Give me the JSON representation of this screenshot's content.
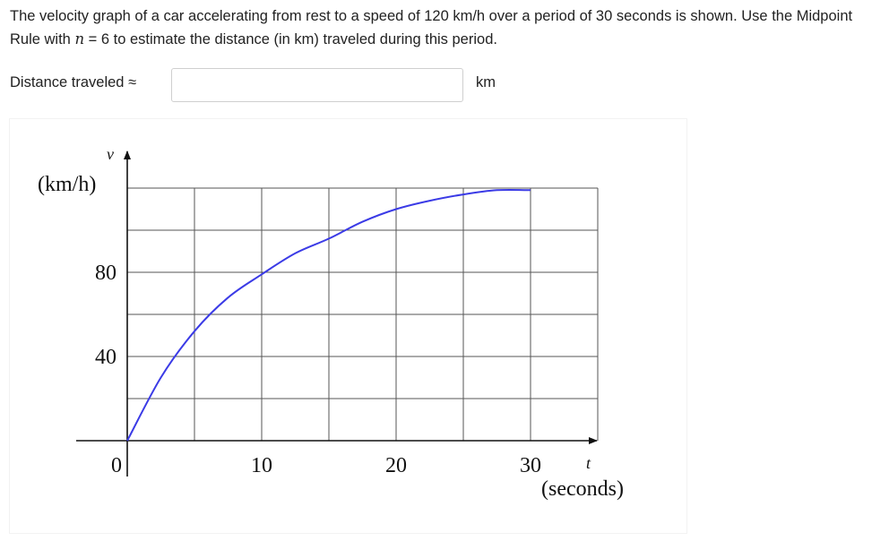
{
  "question": {
    "text_before": "The velocity graph of a car accelerating from rest to a speed of 120 km/h over a period of 30 seconds is shown. Use the Midpoint Rule with ",
    "variable": "n",
    "text_after": " = 6 to estimate the distance (in km) traveled during this period."
  },
  "answer": {
    "label": "Distance traveled ≈",
    "value": "",
    "placeholder": "",
    "unit": "km"
  },
  "chart_data": {
    "type": "line",
    "title": "",
    "ylabel_symbol": "v",
    "ylabel_unit": "(km/h)",
    "xlabel_symbol": "t",
    "xlabel_unit": "(seconds)",
    "xlim": [
      0,
      35
    ],
    "ylim": [
      -5,
      140
    ],
    "x_ticks": [
      0,
      10,
      20,
      30
    ],
    "x_tick_labels": [
      "0",
      "10",
      "20",
      "30"
    ],
    "y_ticks": [
      40,
      80
    ],
    "y_tick_labels": [
      "40",
      "80"
    ],
    "grid": true,
    "grid_x_step": 5,
    "grid_y_step": 20,
    "line_color": "#3b3be6",
    "series": [
      {
        "x": [
          0,
          2.5,
          5,
          7.5,
          10,
          12.5,
          15,
          17.5,
          20,
          22.5,
          25,
          27.5,
          30
        ],
        "y": [
          0,
          30,
          52,
          68,
          79,
          89,
          96,
          104,
          110,
          114,
          117,
          119,
          119
        ]
      }
    ]
  }
}
